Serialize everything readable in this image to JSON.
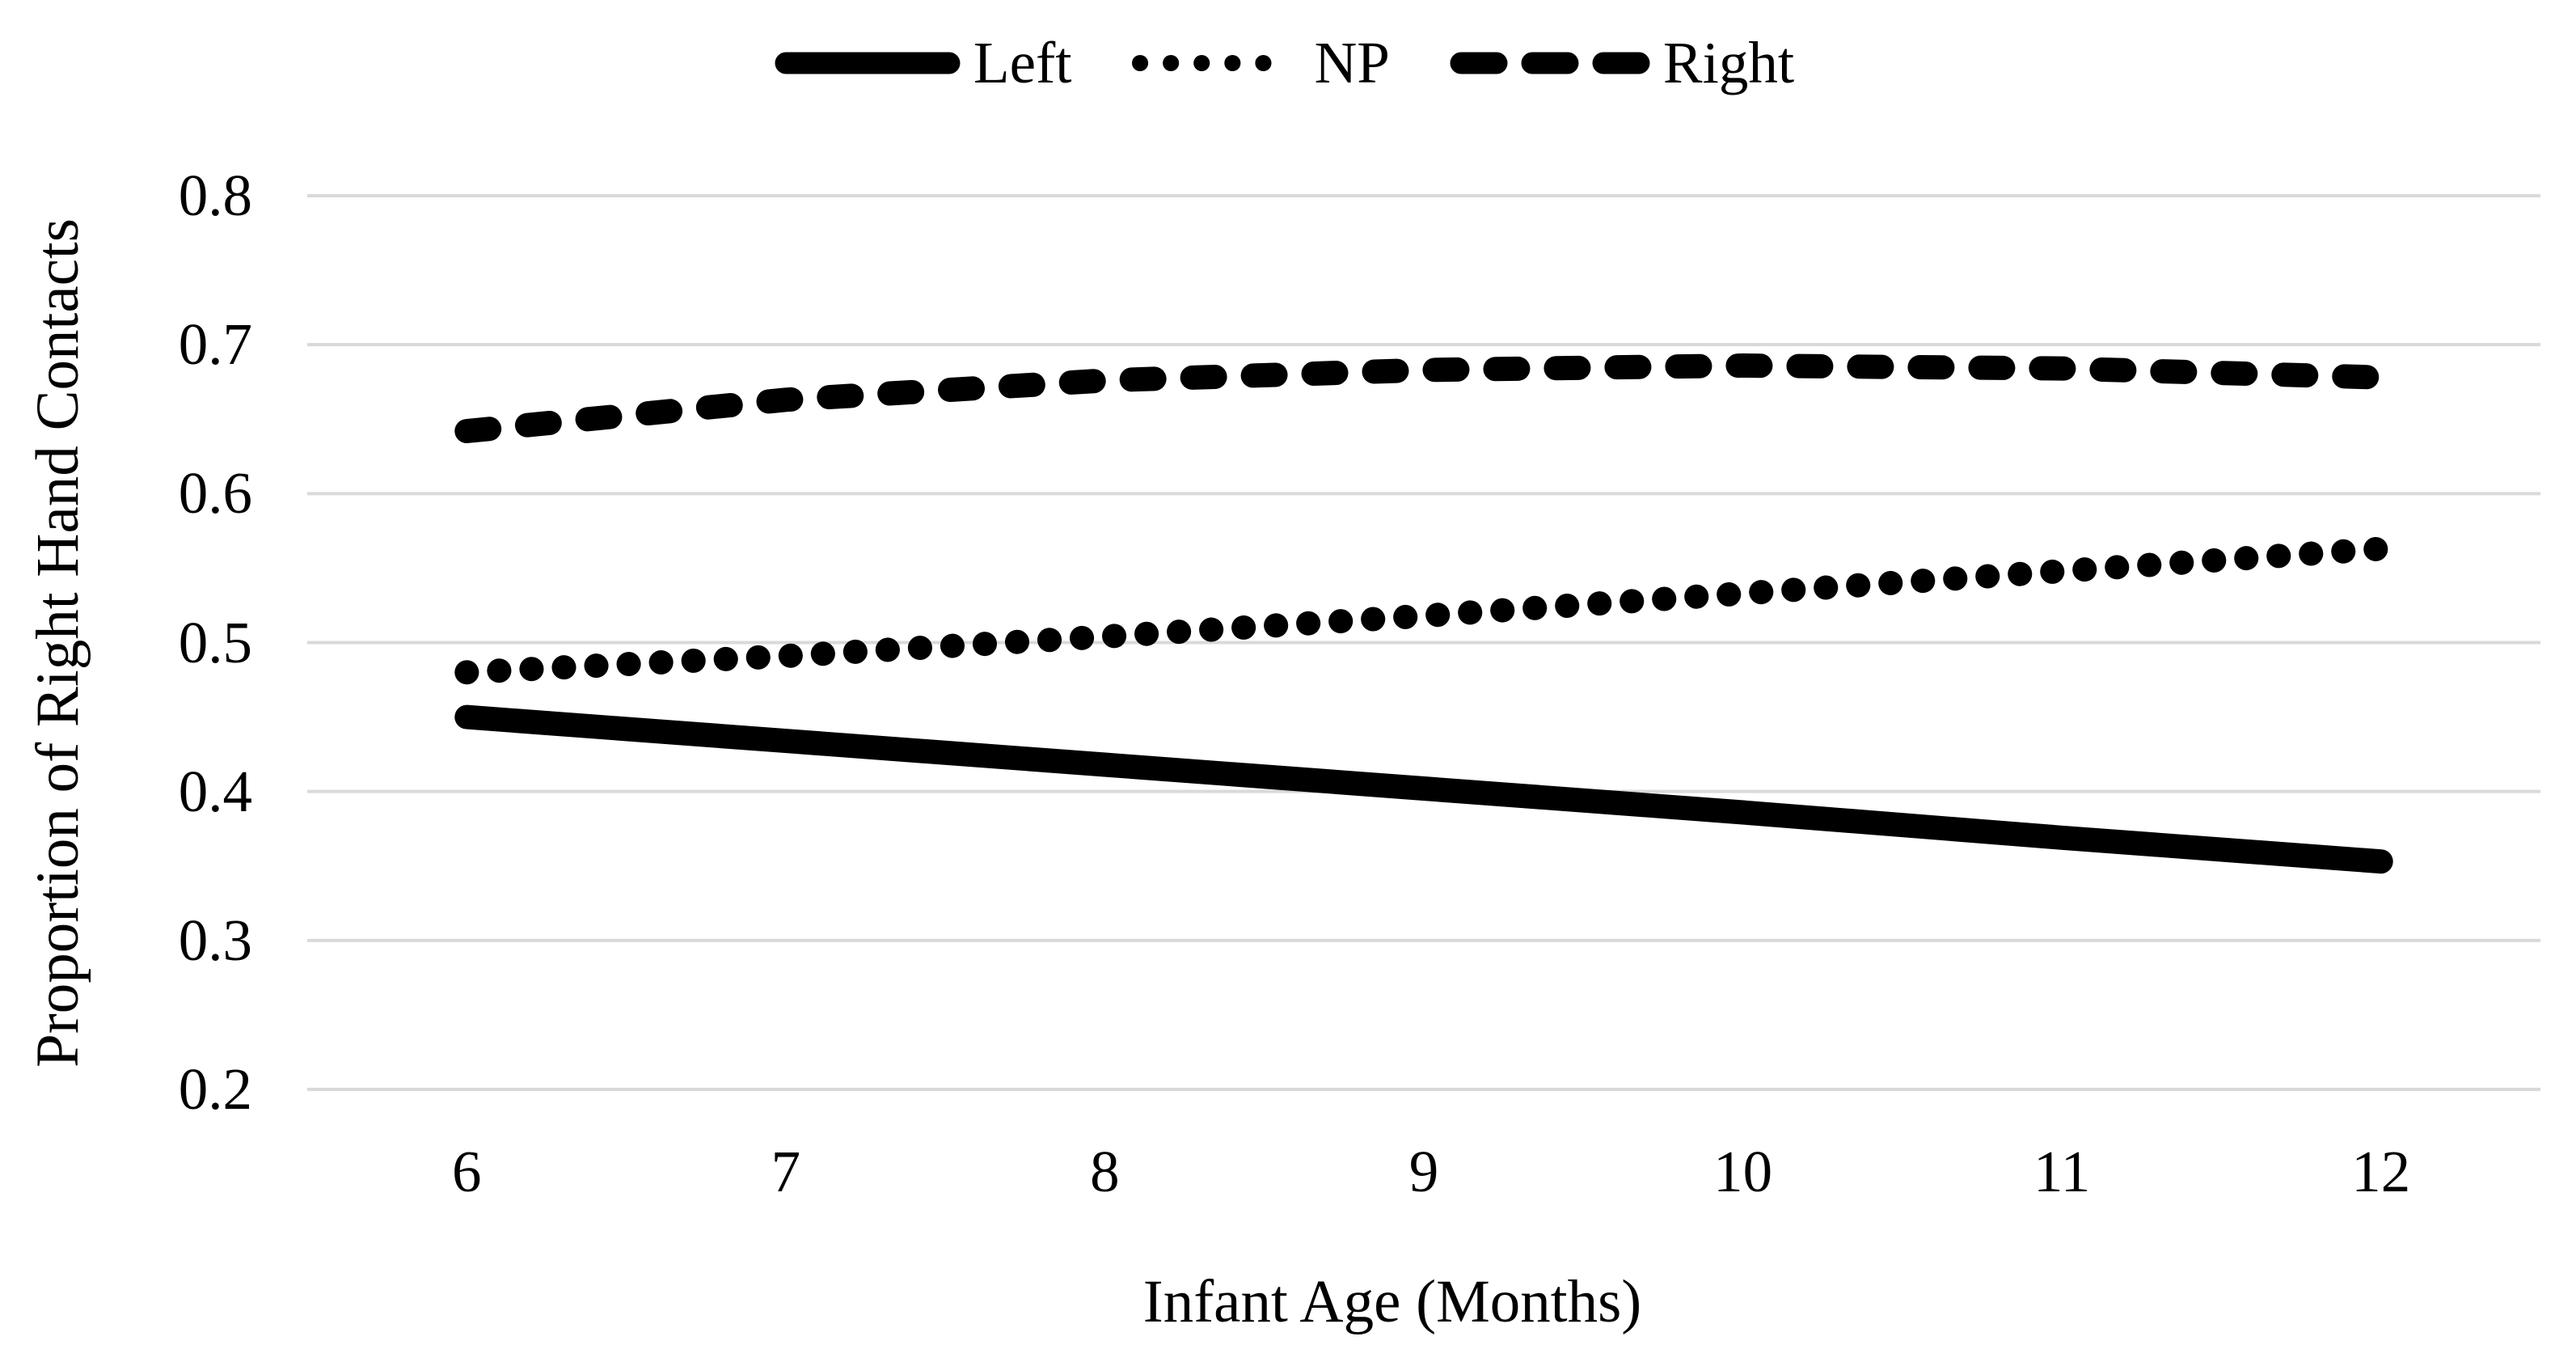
{
  "figure": {
    "background": "#ffffff",
    "text_color": "#000000",
    "gridline_color": "#d9d9d9",
    "series_color": "#000000"
  },
  "legend": {
    "position": "top-center",
    "items": [
      {
        "label": "Left",
        "style": "solid"
      },
      {
        "label": "NP",
        "style": "dotted"
      },
      {
        "label": "Right",
        "style": "dashed"
      }
    ]
  },
  "axes": {
    "x_title": "Infant Age (Months)",
    "y_title": "Proportion of Right Hand Contacts",
    "ytick_labels": [
      "0.8",
      "0.7",
      "0.6",
      "0.5",
      "0.4",
      "0.3",
      "0.2"
    ],
    "xtick_labels": [
      "6",
      "7",
      "8",
      "9",
      "10",
      "11",
      "12"
    ]
  },
  "chart_data": {
    "type": "line",
    "title": "",
    "xlabel": "Infant Age (Months)",
    "ylabel": "Proportion of Right Hand Contacts",
    "x": [
      6,
      7,
      8,
      9,
      10,
      11,
      12
    ],
    "series": [
      {
        "name": "Left",
        "style": "solid",
        "color": "#000000",
        "values": [
          0.45,
          0.434,
          0.418,
          0.402,
          0.386,
          0.369,
          0.353
        ]
      },
      {
        "name": "NP",
        "style": "dotted",
        "color": "#000000",
        "values": [
          0.48,
          0.491,
          0.504,
          0.518,
          0.533,
          0.548,
          0.563
        ]
      },
      {
        "name": "Right",
        "style": "dashed",
        "color": "#000000",
        "values": [
          0.642,
          0.663,
          0.676,
          0.683,
          0.686,
          0.684,
          0.678
        ]
      }
    ],
    "ylim": [
      0.2,
      0.8
    ],
    "ytick_step": 0.1,
    "grid": "horizontal",
    "legend_position": "top"
  }
}
